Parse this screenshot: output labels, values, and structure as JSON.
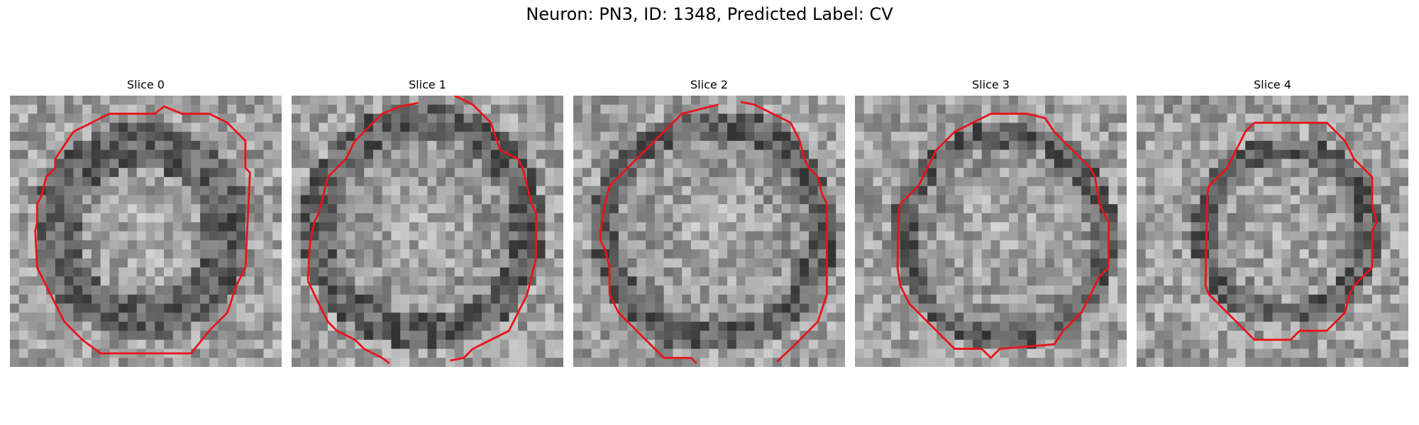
{
  "figure": {
    "title": "Neuron: PN3, ID: 1348, Predicted Label: CV",
    "panels": [
      {
        "title": "Slice 0"
      },
      {
        "title": "Slice 1"
      },
      {
        "title": "Slice 2"
      },
      {
        "title": "Slice 3"
      },
      {
        "title": "Slice 4"
      }
    ],
    "colormap": "gray",
    "contour_color": "#e8141b"
  }
}
